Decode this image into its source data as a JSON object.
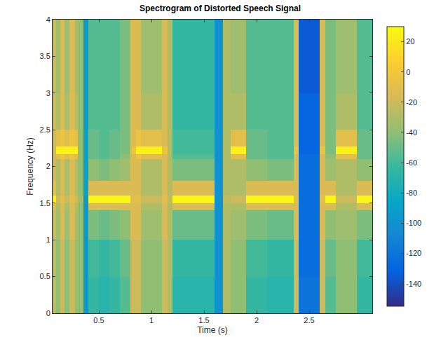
{
  "chart_data": {
    "type": "heatmap",
    "title": "Spectrogram of Distorted Speech Signal",
    "x_label": "Time (s)",
    "y_label": "Frequency (Hz)",
    "x": [
      0.06,
      0.09,
      0.13,
      0.17,
      0.22,
      0.27,
      0.3,
      0.35,
      0.4,
      0.5,
      0.6,
      0.7,
      0.8,
      0.85,
      0.9,
      1.0,
      1.1,
      1.15,
      1.2,
      1.4,
      1.6,
      1.68,
      1.75,
      1.9,
      2.1,
      2.35,
      2.4,
      2.6,
      2.65,
      2.75,
      2.95,
      3.1
    ],
    "y": [
      0,
      0.5,
      1.0,
      1.4,
      1.5,
      1.6,
      1.8,
      2.1,
      2.17,
      2.27,
      2.5,
      3.0,
      3.5,
      4.0
    ],
    "cells": [
      [
        -25,
        -25,
        -20,
        -10,
        25,
        -10,
        -20,
        -20,
        -20,
        -20,
        -20,
        -20,
        -20
      ],
      [
        -40,
        -40,
        -35,
        -30,
        -20,
        -30,
        -30,
        -10,
        25,
        -10,
        -30,
        -35,
        -35
      ],
      [
        -20,
        -20,
        -15,
        -15,
        -10,
        -15,
        -15,
        -5,
        25,
        -5,
        -15,
        -15,
        -15
      ],
      [
        -40,
        -40,
        -35,
        -30,
        -20,
        -30,
        -30,
        -10,
        25,
        -10,
        -30,
        -35,
        -35
      ],
      [
        -20,
        -20,
        -15,
        -15,
        -10,
        -15,
        -15,
        -5,
        25,
        -5,
        -15,
        -15,
        -15
      ],
      [
        -40,
        -40,
        -35,
        -30,
        -20,
        -30,
        -30,
        -10,
        25,
        -10,
        -30,
        -35,
        -35
      ],
      [
        -40,
        -40,
        -40,
        -40,
        -35,
        -40,
        -40,
        -40,
        -40,
        -40,
        -40,
        -40,
        -40
      ],
      [
        -95,
        -95,
        -95,
        -95,
        -95,
        -90,
        -90,
        -90,
        -90,
        -90,
        -95,
        -95,
        -95
      ],
      [
        -65,
        -60,
        -45,
        -15,
        28,
        -15,
        -40,
        -50,
        -50,
        -50,
        -55,
        -55,
        -55
      ],
      [
        -70,
        -65,
        -50,
        -15,
        28,
        -15,
        -45,
        -55,
        -55,
        -55,
        -55,
        -55,
        -55
      ],
      [
        -65,
        -60,
        -45,
        -15,
        28,
        -15,
        -40,
        -50,
        -50,
        -50,
        -55,
        -55,
        -55
      ],
      [
        -55,
        -50,
        -40,
        -15,
        28,
        -15,
        -35,
        -40,
        -45,
        -45,
        -45,
        -45,
        -45
      ],
      [
        -20,
        -20,
        -15,
        -15,
        -10,
        -15,
        -15,
        -15,
        -5,
        -15,
        -15,
        -15,
        -15
      ],
      [
        -20,
        -20,
        -15,
        -15,
        -10,
        -15,
        -15,
        -5,
        25,
        -5,
        -15,
        -15,
        -15
      ],
      [
        -40,
        -40,
        -35,
        -30,
        -20,
        -30,
        -30,
        -10,
        25,
        -10,
        -30,
        -35,
        -35
      ],
      [
        -40,
        -40,
        -35,
        -30,
        -20,
        -30,
        -30,
        -10,
        25,
        -10,
        -30,
        -35,
        -35
      ],
      [
        -20,
        -20,
        -15,
        -15,
        -10,
        -15,
        -15,
        -15,
        -5,
        -15,
        -15,
        -15,
        -15
      ],
      [
        -30,
        -30,
        -30,
        -30,
        -25,
        -30,
        -30,
        -30,
        -30,
        -30,
        -30,
        -30,
        -30
      ],
      [
        -70,
        -65,
        -50,
        -15,
        28,
        -15,
        -45,
        -55,
        -60,
        -60,
        -65,
        -65,
        -65
      ],
      [
        -70,
        -65,
        -50,
        -15,
        28,
        -15,
        -45,
        -55,
        -60,
        -60,
        -65,
        -65,
        -65
      ],
      [
        -100,
        -100,
        -100,
        -100,
        -100,
        -100,
        -100,
        -100,
        -100,
        -100,
        -100,
        -100,
        -100
      ],
      [
        -30,
        -30,
        -30,
        -30,
        -25,
        -30,
        -30,
        -30,
        -30,
        -30,
        -30,
        -30,
        -30
      ],
      [
        -40,
        -40,
        -35,
        -30,
        -20,
        -30,
        -30,
        -10,
        25,
        -10,
        -30,
        -35,
        -35
      ],
      [
        -65,
        -60,
        -45,
        -15,
        28,
        -15,
        -40,
        -50,
        -50,
        -50,
        -55,
        -55,
        -55
      ],
      [
        -70,
        -65,
        -50,
        -15,
        28,
        -15,
        -45,
        -55,
        -55,
        -55,
        -55,
        -55,
        -55
      ],
      [
        -20,
        -20,
        -15,
        -15,
        -10,
        -15,
        -15,
        -15,
        -5,
        -15,
        -15,
        -15,
        -15
      ],
      [
        -120,
        -125,
        -125,
        -125,
        -125,
        -125,
        -125,
        -125,
        -130,
        -130,
        -130,
        -135,
        -135
      ],
      [
        -20,
        -20,
        -15,
        -15,
        -10,
        -15,
        -15,
        -15,
        -5,
        -15,
        -15,
        -15,
        -15
      ],
      [
        -55,
        -50,
        -40,
        -15,
        28,
        -15,
        -35,
        -40,
        -45,
        -45,
        -45,
        -45,
        -45
      ],
      [
        -40,
        -40,
        -35,
        -30,
        -20,
        -30,
        -30,
        -10,
        25,
        -10,
        -30,
        -35,
        -35
      ],
      [
        -65,
        -60,
        -45,
        -15,
        28,
        -15,
        -40,
        -50,
        -50,
        -50,
        -55,
        -55,
        -55
      ]
    ],
    "xlim": [
      0.06,
      3.1
    ],
    "ylim": [
      0,
      4
    ],
    "xticks": [
      0.5,
      1,
      1.5,
      2,
      2.5
    ],
    "yticks": [
      0,
      0.5,
      1,
      1.5,
      2,
      2.5,
      3,
      3.5,
      4
    ],
    "colorbar_range": [
      -155,
      30
    ],
    "colorbar_ticks": [
      -140,
      -120,
      -100,
      -80,
      -60,
      -40,
      -20,
      0,
      20
    ]
  }
}
